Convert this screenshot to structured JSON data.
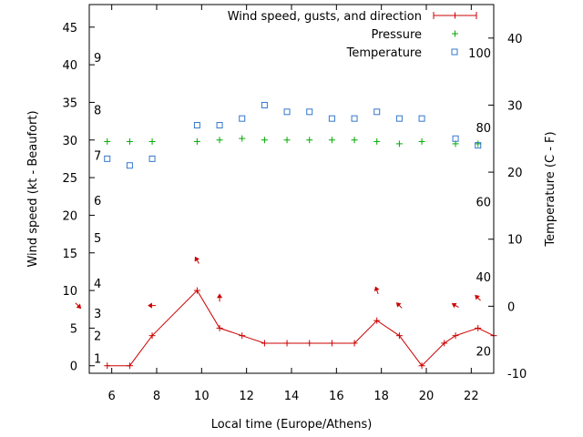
{
  "chart_data": {
    "type": "line",
    "xlabel": "Local time (Europe/Athens)",
    "ylabel_left": "Wind speed (kt - Beaufort)",
    "ylabel_right": "Temperature (C - F)",
    "x_range": [
      5,
      23
    ],
    "x_ticks": [
      6,
      8,
      10,
      12,
      14,
      16,
      18,
      20,
      22
    ],
    "y_left_range": [
      -1,
      48
    ],
    "y_left_ticks": [
      0,
      5,
      10,
      15,
      20,
      25,
      30,
      35,
      40,
      45
    ],
    "y_right_range": [
      -10,
      45
    ],
    "y_right_ticks": [
      -10,
      0,
      10,
      20,
      30,
      40
    ],
    "beaufort_scale": [
      {
        "label": "1",
        "y": 1
      },
      {
        "label": "2",
        "y": 4
      },
      {
        "label": "3",
        "y": 7
      },
      {
        "label": "4",
        "y": 11
      },
      {
        "label": "5",
        "y": 17
      },
      {
        "label": "6",
        "y": 22
      },
      {
        "label": "7",
        "y": 28
      },
      {
        "label": "8",
        "y": 34
      },
      {
        "label": "9",
        "y": 41
      }
    ],
    "fahrenheit_scale": [
      {
        "label": "20",
        "temp_c": -6.7
      },
      {
        "label": "40",
        "temp_c": 4.4
      },
      {
        "label": "60",
        "temp_c": 15.6
      },
      {
        "label": "80",
        "temp_c": 26.7
      },
      {
        "label": "100",
        "temp_c": 37.8
      }
    ],
    "legend": {
      "wind": "Wind speed, gusts, and direction",
      "pressure": "Pressure",
      "temperature": "Temperature"
    },
    "series": [
      {
        "name": "Wind speed, gusts, and direction",
        "color": "#cc0000",
        "x": [
          5.8,
          6.8,
          7.8,
          9.8,
          10.8,
          11.8,
          12.8,
          13.8,
          14.8,
          15.8,
          16.8,
          17.8,
          18.8,
          19.8,
          20.8,
          21.3,
          22.3,
          23.0
        ],
        "y": [
          0,
          0,
          4,
          10,
          5,
          4,
          3,
          3,
          3,
          3,
          3,
          6,
          4,
          0,
          3,
          4,
          5,
          4
        ]
      },
      {
        "name": "Pressure",
        "color": "#00aa00",
        "x": [
          5.8,
          6.8,
          7.8,
          9.8,
          10.8,
          11.8,
          12.8,
          13.8,
          14.8,
          15.8,
          16.8,
          17.8,
          18.8,
          19.8,
          21.3,
          22.3
        ],
        "y": [
          29.8,
          29.8,
          29.8,
          29.8,
          30.0,
          30.2,
          30.0,
          30.0,
          30.0,
          30.0,
          30.0,
          29.8,
          29.5,
          29.8,
          29.5,
          29.5
        ]
      },
      {
        "name": "Temperature",
        "color": "#3377cc",
        "x": [
          5.8,
          6.8,
          7.8,
          9.8,
          10.8,
          11.8,
          12.8,
          13.8,
          14.8,
          15.8,
          16.8,
          17.8,
          18.8,
          19.8,
          21.3,
          22.3
        ],
        "y": [
          22,
          21,
          22,
          27,
          27,
          28,
          30,
          29,
          29,
          28,
          28,
          29,
          28,
          28,
          25,
          24
        ]
      }
    ],
    "wind_direction_arrows": [
      {
        "x": 4.5,
        "y": 8,
        "angle": 45
      },
      {
        "x": 7.8,
        "y": 8,
        "angle": 180
      },
      {
        "x": 9.8,
        "y": 14,
        "angle": -120
      },
      {
        "x": 10.8,
        "y": 9,
        "angle": -90
      },
      {
        "x": 17.8,
        "y": 10,
        "angle": -110
      },
      {
        "x": 18.8,
        "y": 8,
        "angle": -135
      },
      {
        "x": 21.3,
        "y": 8,
        "angle": -150
      },
      {
        "x": 22.3,
        "y": 9,
        "angle": -135
      }
    ]
  }
}
